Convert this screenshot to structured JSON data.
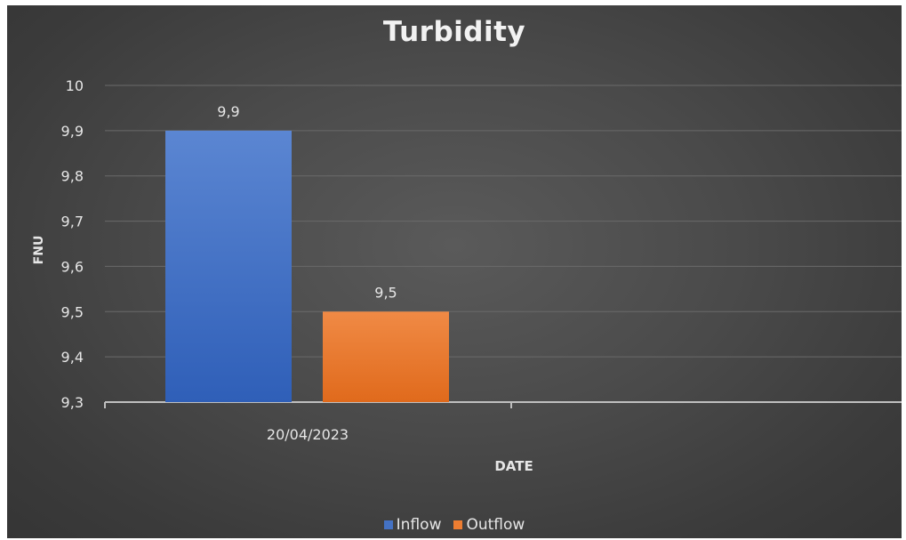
{
  "chart_data": {
    "type": "bar",
    "title": "Turbidity",
    "xlabel": "DATE",
    "ylabel": "FNU",
    "categories": [
      "20/04/2023"
    ],
    "series": [
      {
        "name": "Inflow",
        "values": [
          9.9
        ],
        "color": "#4472c4"
      },
      {
        "name": "Outflow",
        "values": [
          9.5
        ],
        "color": "#ed7d31"
      }
    ],
    "ylim": [
      9.3,
      10
    ],
    "yticks": [
      "10",
      "9,9",
      "9,8",
      "9,7",
      "9,6",
      "9,5",
      "9,4",
      "9,3"
    ],
    "data_labels": [
      "9,9",
      "9,5"
    ],
    "grid": true,
    "legend_position": "bottom"
  }
}
